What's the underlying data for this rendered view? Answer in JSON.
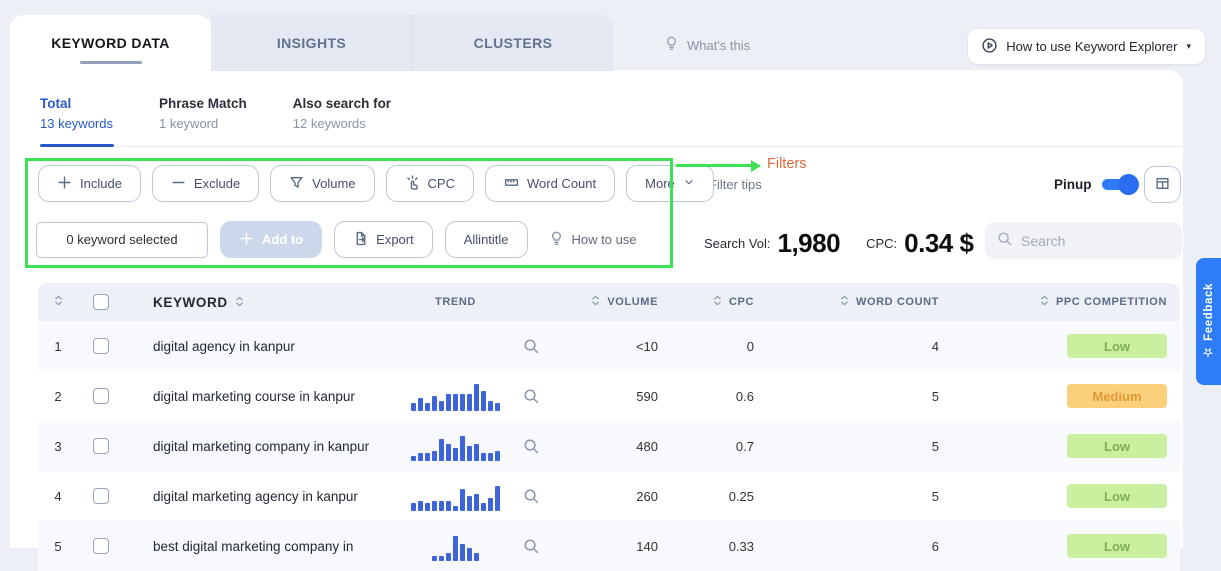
{
  "tabs": [
    {
      "label": "KEYWORD DATA",
      "active": true
    },
    {
      "label": "INSIGHTS",
      "active": false
    },
    {
      "label": "CLUSTERS",
      "active": false
    }
  ],
  "header": {
    "whats_this": "What's this",
    "how_to_use": "How to use Keyword Explorer"
  },
  "subtabs": [
    {
      "label": "Total",
      "count": "13 keywords",
      "active": true
    },
    {
      "label": "Phrase Match",
      "count": "1 keyword",
      "active": false
    },
    {
      "label": "Also search for",
      "count": "12 keywords",
      "active": false
    }
  ],
  "annotation": {
    "label": "Filters"
  },
  "filters": {
    "buttons": [
      {
        "label": "Include",
        "icon": "plus"
      },
      {
        "label": "Exclude",
        "icon": "minus"
      },
      {
        "label": "Volume",
        "icon": "filter"
      },
      {
        "label": "CPC",
        "icon": "click"
      },
      {
        "label": "Word Count",
        "icon": "ruler"
      },
      {
        "label": "More",
        "icon": "chevron-down",
        "icon_after": true
      }
    ],
    "tips_label": "Filter tips",
    "pinup_label": "Pinup"
  },
  "actions": {
    "selected": "0 keyword selected",
    "add_to": "Add to",
    "export": "Export",
    "allintitle": "Allintitle",
    "how_to_use": "How to use"
  },
  "stats": {
    "search_vol_label": "Search Vol:",
    "search_vol_value": "1,980",
    "cpc_label": "CPC:",
    "cpc_value": "0.34 $"
  },
  "search": {
    "placeholder": "Search"
  },
  "feedback_label": "Feedback",
  "table": {
    "headers": {
      "keyword": "KEYWORD",
      "trend": "TREND",
      "volume": "VOLUME",
      "cpc": "CPC",
      "word_count": "WORD COUNT",
      "ppc": "PPC COMPETITION"
    },
    "rows": [
      {
        "num": "1",
        "keyword": "digital agency in kanpur",
        "trend": [],
        "volume": "<10",
        "cpc": "0",
        "word_count": "4",
        "ppc": "Low"
      },
      {
        "num": "2",
        "keyword": "digital marketing course in kanpur",
        "trend": [
          2,
          4,
          2,
          5,
          3,
          6,
          6,
          6,
          6,
          10,
          7,
          3,
          2
        ],
        "volume": "590",
        "cpc": "0.6",
        "word_count": "5",
        "ppc": "Medium"
      },
      {
        "num": "3",
        "keyword": "digital marketing company in kanpur",
        "trend": [
          1,
          2,
          2,
          3,
          8,
          6,
          4,
          9,
          5,
          6,
          2,
          2,
          3
        ],
        "volume": "480",
        "cpc": "0.7",
        "word_count": "5",
        "ppc": "Low"
      },
      {
        "num": "4",
        "keyword": "digital marketing agency in kanpur",
        "trend": [
          2,
          3,
          2,
          3,
          3,
          3,
          1,
          8,
          5,
          6,
          2,
          4,
          9
        ],
        "volume": "260",
        "cpc": "0.25",
        "word_count": "5",
        "ppc": "Low"
      },
      {
        "num": "5",
        "keyword": "best digital marketing company in",
        "trend": [
          1,
          1,
          2,
          9,
          6,
          4,
          2
        ],
        "volume": "140",
        "cpc": "0.33",
        "word_count": "6",
        "ppc": "Low"
      }
    ]
  },
  "colors": {
    "accent_blue": "#2859c8",
    "trend_bar_blue": "#3d65d9",
    "toggle_blue": "#2f7bf6",
    "annotation_green": "#3ce254",
    "annotation_text": "#d96c3b",
    "badge_low_bg": "#c9ef9f",
    "badge_low_text": "#7fae52",
    "badge_medium_bg": "#fbd07c",
    "badge_medium_text": "#df9a38",
    "feedback_blue": "#2e7cf6"
  }
}
